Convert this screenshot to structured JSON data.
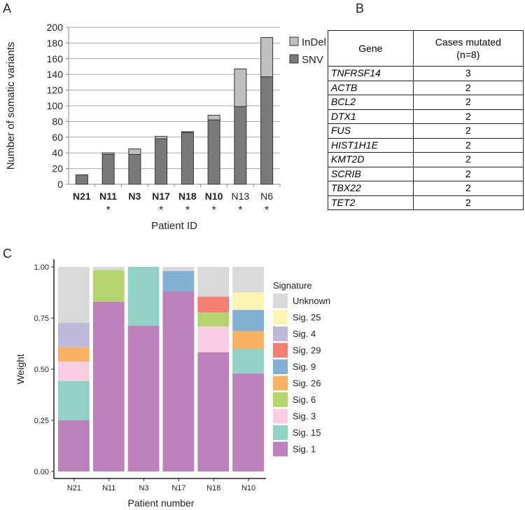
{
  "panels": {
    "a": "A",
    "b": "B",
    "c": "C"
  },
  "chart_data": [
    {
      "type": "bar",
      "stacked": true,
      "categories": [
        "N21",
        "N11",
        "N3",
        "N17",
        "N18",
        "N10",
        "N13",
        "N6"
      ],
      "category_bold": [
        true,
        true,
        true,
        true,
        true,
        true,
        false,
        false
      ],
      "category_asterisk": [
        false,
        true,
        false,
        true,
        true,
        true,
        true,
        true
      ],
      "asterisk": "*",
      "series": [
        {
          "name": "SNV",
          "color": "#7a7a7c",
          "values": [
            12,
            38,
            38,
            58,
            66,
            82,
            99,
            137
          ]
        },
        {
          "name": "InDel",
          "color": "#bfbfc1",
          "values": [
            0,
            2,
            7,
            3,
            1,
            6,
            48,
            50
          ]
        }
      ],
      "legend_order": [
        "InDel",
        "SNV"
      ],
      "legend": "right",
      "xlabel": "Patient ID",
      "ylabel": "Number of somatic variants",
      "ylim": [
        0,
        200
      ],
      "yticks": [
        0,
        20,
        40,
        60,
        80,
        100,
        120,
        140,
        160,
        180,
        200
      ],
      "grid": true
    },
    {
      "type": "bar",
      "stacked": true,
      "categories": [
        "N21",
        "N11",
        "N3",
        "N17",
        "N18",
        "N10"
      ],
      "series": [
        {
          "name": "Sig. 1",
          "color": "#bd80bb",
          "values": [
            0.25,
            0.83,
            0.712,
            0.88,
            0.583,
            0.479
          ]
        },
        {
          "name": "Sig. 15",
          "color": "#92d1c6",
          "values": [
            0.193,
            0,
            0.288,
            0,
            0,
            0.12
          ]
        },
        {
          "name": "Sig. 3",
          "color": "#f8cde2",
          "values": [
            0.095,
            0,
            0,
            0,
            0.126,
            0
          ]
        },
        {
          "name": "Sig. 6",
          "color": "#b4d56d",
          "values": [
            0,
            0.155,
            0,
            0,
            0.068,
            0
          ]
        },
        {
          "name": "Sig. 26",
          "color": "#fab262",
          "values": [
            0.069,
            0,
            0,
            0,
            0,
            0.087
          ]
        },
        {
          "name": "Sig. 9",
          "color": "#80b0d3",
          "values": [
            0,
            0,
            0,
            0.1,
            0,
            0.104
          ]
        },
        {
          "name": "Sig. 29",
          "color": "#f38073",
          "values": [
            0,
            0,
            0,
            0,
            0.078,
            0
          ]
        },
        {
          "name": "Sig. 4",
          "color": "#bcb9da",
          "values": [
            0.119,
            0,
            0,
            0,
            0,
            0
          ]
        },
        {
          "name": "Sig. 25",
          "color": "#fbf5b0",
          "values": [
            0,
            0,
            0,
            0,
            0,
            0.085
          ]
        },
        {
          "name": "Unknown",
          "color": "#d9d9d9",
          "values": [
            0.274,
            0.015,
            0,
            0.02,
            0.145,
            0.125
          ]
        }
      ],
      "legend_title": "Signature",
      "legend": "right",
      "xlabel": "Patient number",
      "ylabel": "Weight",
      "ylim": [
        0,
        1
      ],
      "yticks": [
        "0.00",
        "0.25",
        "0.50",
        "0.75",
        "1.00"
      ],
      "grid": false
    }
  ],
  "table": {
    "headers": [
      "Gene",
      "Cases mutated\n(n=8)"
    ],
    "rows": [
      [
        "TNFRSF14",
        "3"
      ],
      [
        "ACTB",
        "2"
      ],
      [
        "BCL2",
        "2"
      ],
      [
        "DTX1",
        "2"
      ],
      [
        "FUS",
        "2"
      ],
      [
        "HIST1H1E",
        "2"
      ],
      [
        "KMT2D",
        "2"
      ],
      [
        "SCRIB",
        "2"
      ],
      [
        "TBX22",
        "2"
      ],
      [
        "TET2",
        "2"
      ]
    ]
  }
}
